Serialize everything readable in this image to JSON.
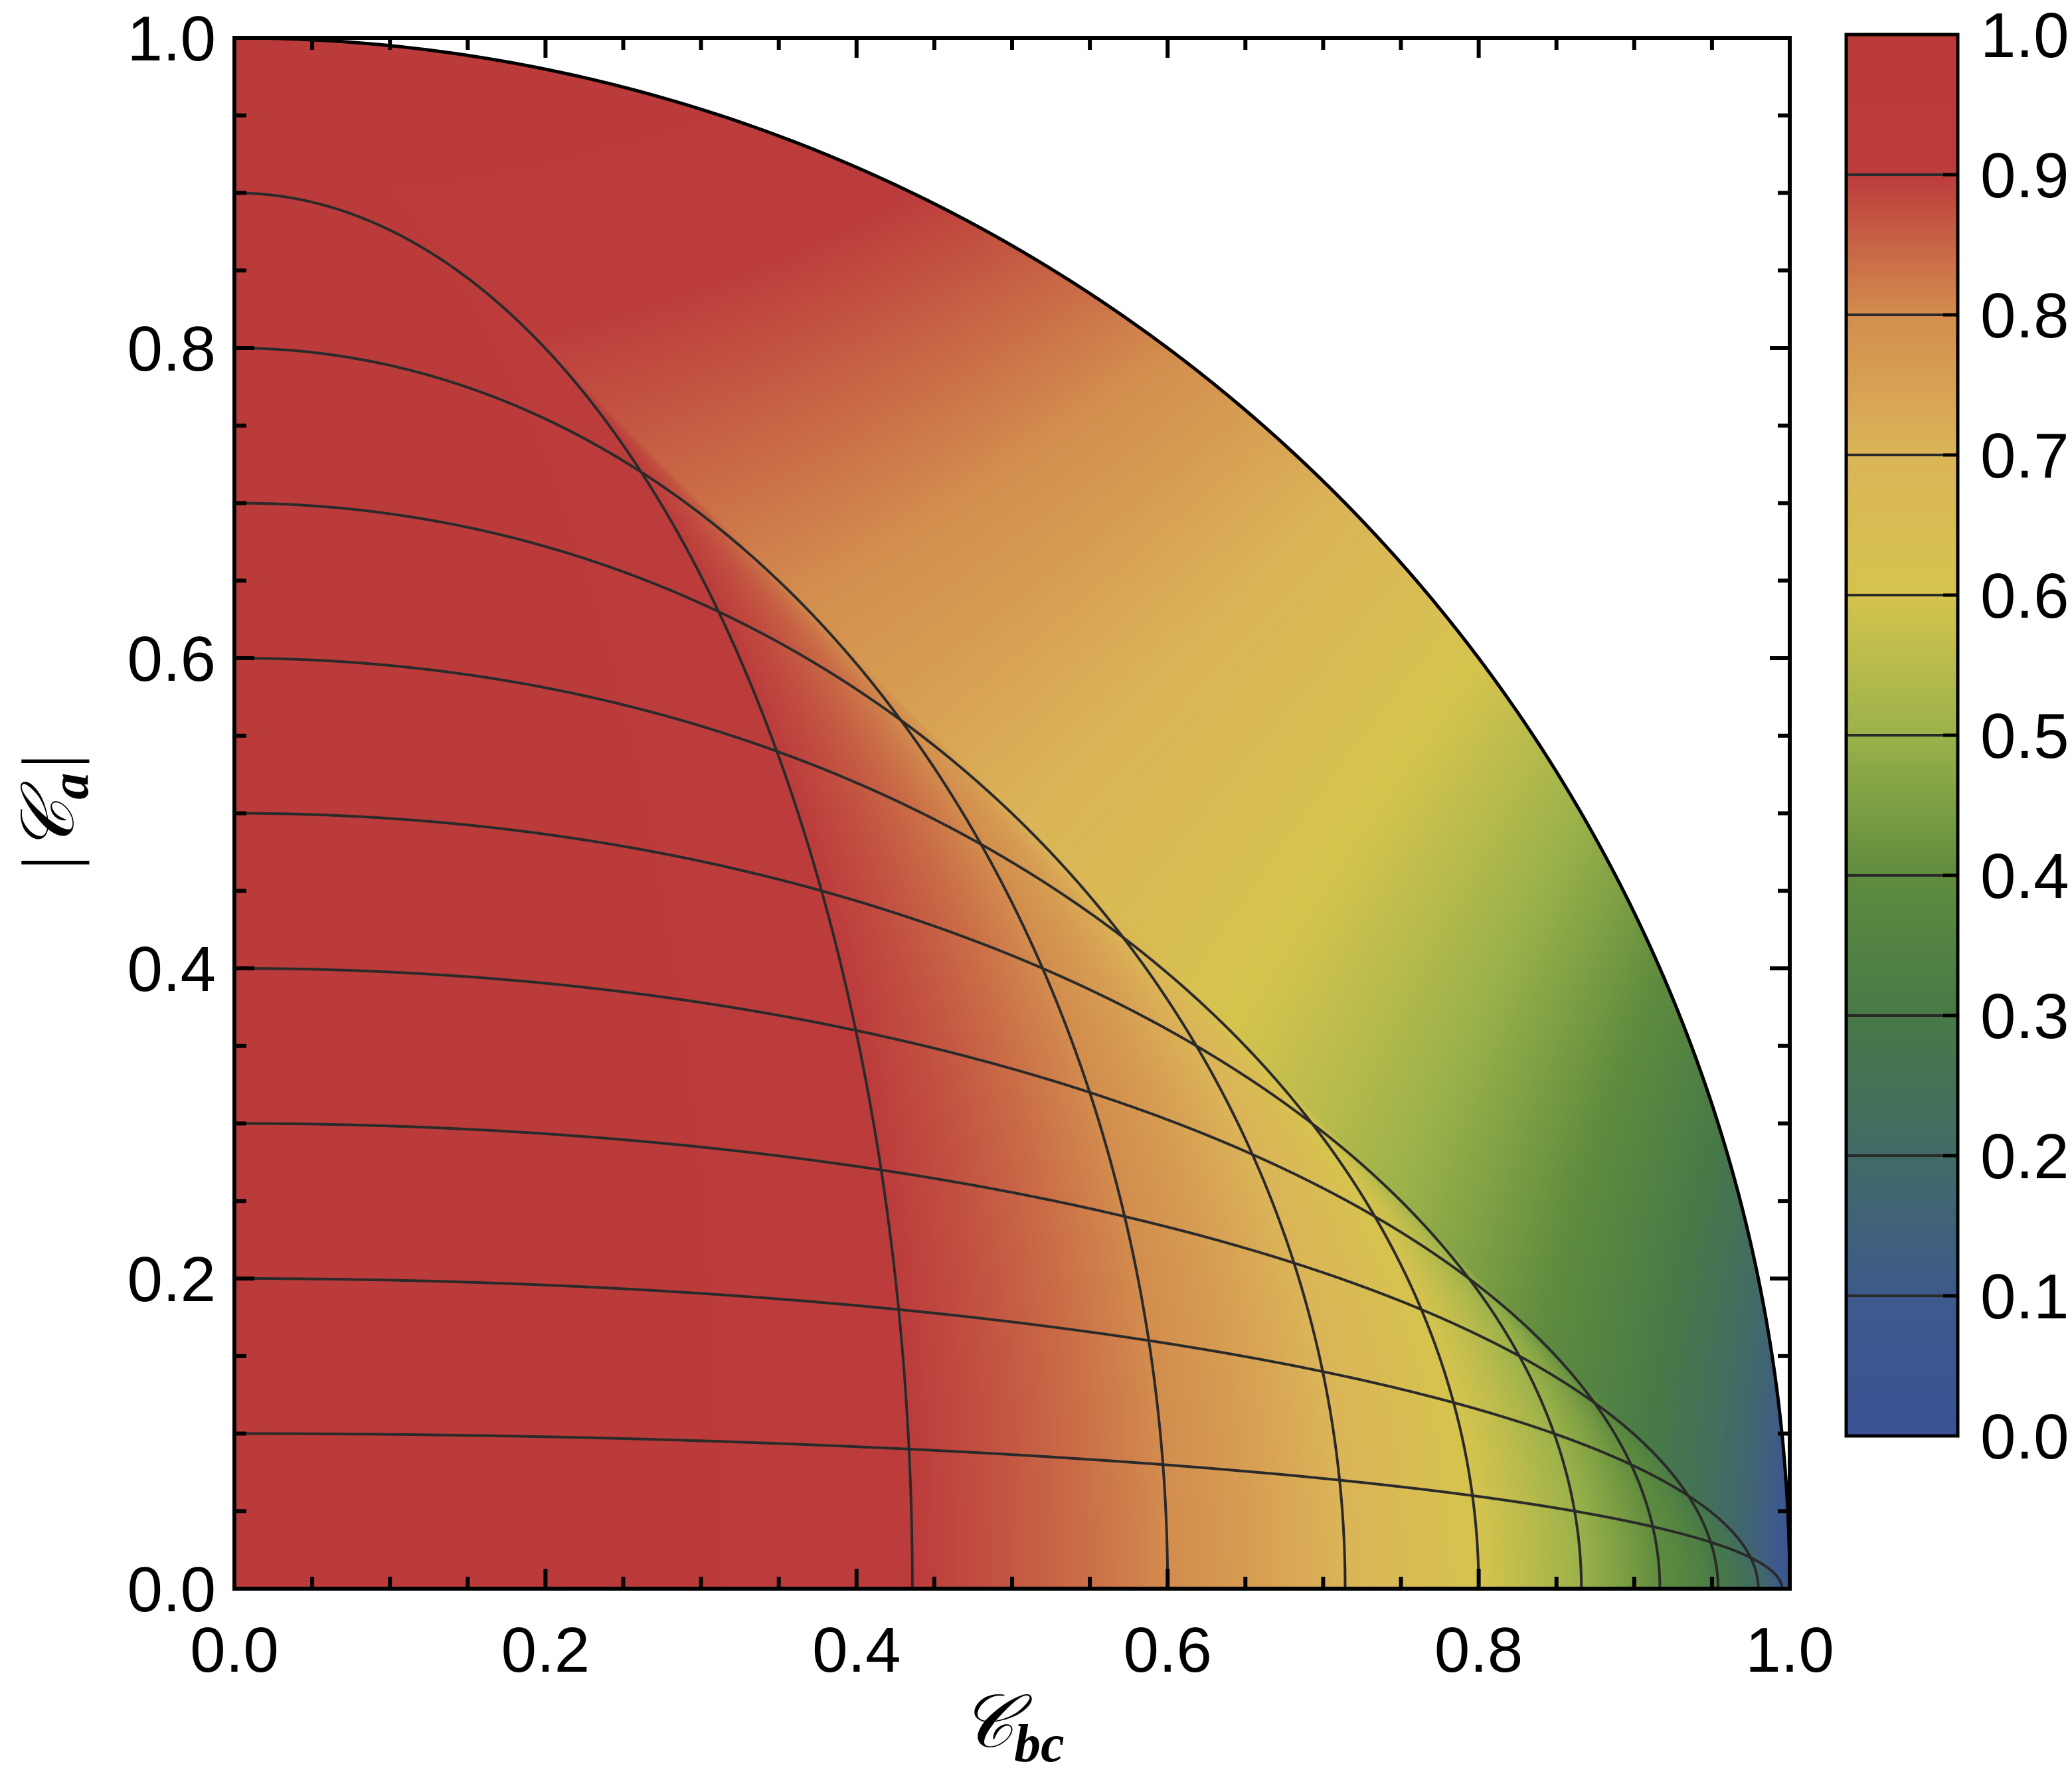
{
  "chart_data": {
    "type": "heatmap",
    "title": "",
    "xlabel": {
      "main": "𝒞",
      "sub": "bc"
    },
    "ylabel": {
      "prefix": "|",
      "main": "𝒞",
      "sub": "a",
      "suffix": "|"
    },
    "x": {
      "min": 0.0,
      "max": 1.0,
      "ticks": [
        "0.0",
        "0.2",
        "0.4",
        "0.6",
        "0.8",
        "1.0"
      ],
      "minor_step": 0.05
    },
    "y": {
      "min": 0.0,
      "max": 1.0,
      "ticks": [
        "0.0",
        "0.2",
        "0.4",
        "0.6",
        "0.8",
        "1.0"
      ],
      "minor_step": 0.05
    },
    "domain": "x^2 + y^2 <= 1",
    "field": "z such that (x^2)/(1 - z^2) + (y^2)/(z^2) = 1",
    "contour_levels": [
      0.1,
      0.2,
      0.3,
      0.4,
      0.5,
      0.6,
      0.7,
      0.8,
      0.9
    ],
    "colorbar": {
      "min": 0.0,
      "max": 1.0,
      "ticks": [
        "0.0",
        "0.1",
        "0.2",
        "0.3",
        "0.4",
        "0.5",
        "0.6",
        "0.7",
        "0.8",
        "0.9",
        "1.0"
      ],
      "position": "right"
    },
    "colormap": [
      {
        "v": 0.0,
        "color": "#3b5294"
      },
      {
        "v": 0.1,
        "color": "#3d5a8c"
      },
      {
        "v": 0.2,
        "color": "#426b67"
      },
      {
        "v": 0.3,
        "color": "#477a47"
      },
      {
        "v": 0.4,
        "color": "#5f8c3e"
      },
      {
        "v": 0.5,
        "color": "#9bb24a"
      },
      {
        "v": 0.6,
        "color": "#d6c44e"
      },
      {
        "v": 0.7,
        "color": "#dbb558"
      },
      {
        "v": 0.8,
        "color": "#d38d4e"
      },
      {
        "v": 0.9,
        "color": "#bc3c3c"
      },
      {
        "v": 1.0,
        "color": "#bb3b3b"
      }
    ]
  }
}
